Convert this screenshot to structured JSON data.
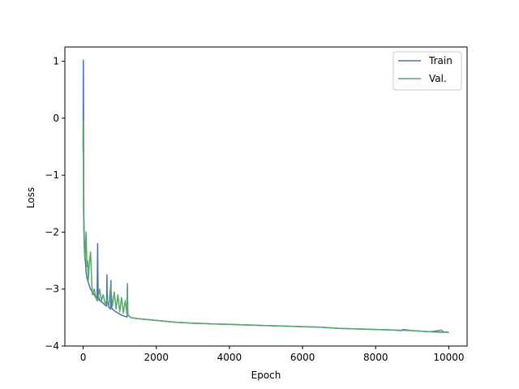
{
  "chart_data": {
    "type": "line",
    "title": "",
    "xlabel": "Epoch",
    "ylabel": "Loss",
    "xlim": [
      -500,
      10500
    ],
    "ylim": [
      -4,
      1.25
    ],
    "xticks": [
      0,
      2000,
      4000,
      6000,
      8000,
      10000
    ],
    "yticks": [
      -4,
      -3,
      -2,
      -1,
      0,
      1
    ],
    "xtick_labels": [
      "0",
      "2000",
      "4000",
      "6000",
      "8000",
      "10000"
    ],
    "ytick_labels": [
      "−4",
      "−3",
      "−2",
      "−1",
      "0",
      "1"
    ],
    "grid": false,
    "legend_position": "top-right",
    "series": [
      {
        "name": "Train",
        "color": "#4c72b0",
        "x": [
          0,
          5,
          10,
          20,
          30,
          50,
          80,
          100,
          150,
          200,
          250,
          300,
          350,
          380,
          395,
          410,
          450,
          500,
          550,
          600,
          640,
          650,
          660,
          700,
          750,
          760,
          770,
          800,
          850,
          900,
          950,
          1000,
          1050,
          1100,
          1150,
          1200,
          1210,
          1220,
          1300,
          1500,
          2000,
          2500,
          3000,
          3500,
          4000,
          4500,
          5000,
          5500,
          6000,
          6500,
          7000,
          7500,
          8000,
          8500,
          8700,
          8750,
          9000,
          9500,
          10000
        ],
        "values": [
          -0.5,
          1.02,
          0.2,
          -1.7,
          -2.1,
          -2.4,
          -2.7,
          -2.8,
          -2.9,
          -3.0,
          -3.05,
          -3.1,
          -3.15,
          -3.2,
          -2.2,
          -3.1,
          -3.2,
          -3.22,
          -3.25,
          -3.28,
          -3.3,
          -2.75,
          -3.2,
          -3.32,
          -3.35,
          -2.85,
          -3.3,
          -3.35,
          -3.38,
          -3.4,
          -3.42,
          -3.44,
          -3.46,
          -3.47,
          -3.48,
          -3.49,
          -2.95,
          -3.45,
          -3.5,
          -3.52,
          -3.55,
          -3.58,
          -3.6,
          -3.61,
          -3.62,
          -3.63,
          -3.64,
          -3.65,
          -3.66,
          -3.67,
          -3.69,
          -3.7,
          -3.71,
          -3.72,
          -3.73,
          -3.71,
          -3.73,
          -3.75,
          -3.76
        ]
      },
      {
        "name": "Val.",
        "color": "#55a868",
        "x": [
          0,
          5,
          10,
          20,
          30,
          50,
          80,
          100,
          120,
          140,
          160,
          200,
          250,
          300,
          350,
          400,
          450,
          500,
          550,
          600,
          650,
          700,
          750,
          800,
          850,
          900,
          950,
          1000,
          1050,
          1100,
          1150,
          1200,
          1210,
          1220,
          1300,
          1500,
          2000,
          2500,
          3000,
          3500,
          4000,
          4500,
          5000,
          5500,
          6000,
          6500,
          7000,
          7500,
          8000,
          8500,
          9000,
          9500,
          9800,
          9850,
          10000
        ],
        "values": [
          -0.6,
          -0.05,
          -1.6,
          -2.0,
          -2.3,
          -2.5,
          -2.0,
          -2.6,
          -2.5,
          -2.85,
          -2.6,
          -2.35,
          -3.1,
          -3.0,
          -3.15,
          -3.2,
          -3.0,
          -3.2,
          -3.1,
          -3.25,
          -3.2,
          -3.28,
          -2.95,
          -3.3,
          -3.05,
          -3.35,
          -3.1,
          -3.4,
          -3.15,
          -3.42,
          -3.2,
          -3.45,
          -2.9,
          -3.45,
          -3.5,
          -3.52,
          -3.55,
          -3.58,
          -3.6,
          -3.61,
          -3.62,
          -3.63,
          -3.64,
          -3.65,
          -3.66,
          -3.67,
          -3.69,
          -3.7,
          -3.71,
          -3.72,
          -3.73,
          -3.75,
          -3.72,
          -3.75,
          -3.76
        ]
      }
    ]
  }
}
